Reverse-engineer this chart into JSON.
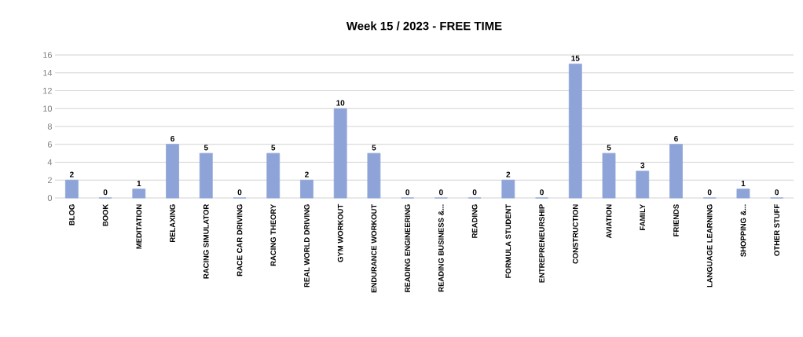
{
  "chart_data": {
    "type": "bar",
    "title": "Week 15 / 2023 - FREE TIME",
    "categories": [
      "BLOG",
      "BOOK",
      "MEDITATION",
      "RELAXING",
      "RACING SIMULATOR",
      "RACE CAR DRIVING",
      "RACING THEORY",
      "REAL WORLD DRIVING",
      "GYM WORKOUT",
      "ENDURANCE WORKOUT",
      "READING ENGINEERING",
      "READING BUSINESS &...",
      "READING",
      "FORMULA STUDENT",
      "ENTREPRENEURSHIP",
      "CONSTRUCTION",
      "AVIATION",
      "FAMILY",
      "FRIENDS",
      "LANGUAGE LEARNING",
      "SHOPPING &...",
      "OTHER STUFF"
    ],
    "values": [
      2,
      0,
      1,
      6,
      5,
      0,
      5,
      2,
      10,
      5,
      0,
      0,
      0,
      2,
      0,
      15,
      5,
      3,
      6,
      0,
      1,
      0
    ],
    "color": "#8ea4d8",
    "ylim": [
      0,
      16
    ],
    "yticks": [
      0,
      2,
      4,
      6,
      8,
      10,
      12,
      14,
      16
    ],
    "grid": "y",
    "data_labels": true
  }
}
